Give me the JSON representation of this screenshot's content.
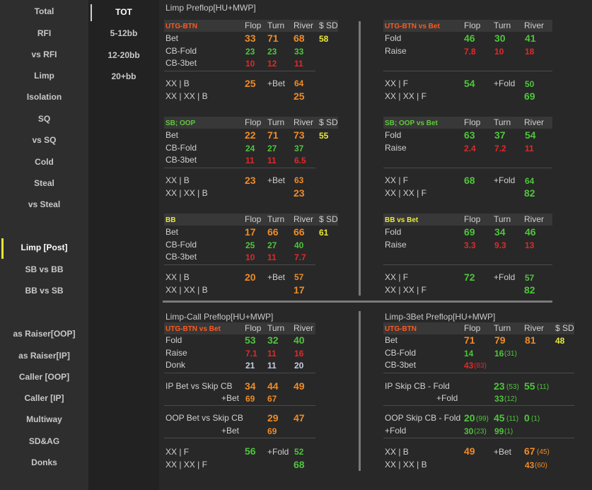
{
  "sidebar": {
    "items": [
      "Total",
      "RFI",
      "vs RFI",
      "Limp",
      "Isolation",
      "SQ",
      "vs SQ",
      "Cold",
      "Steal",
      "vs Steal",
      "Limp [Post]",
      "SB vs BB",
      "BB vs SB",
      "as Raiser[OOP]",
      "as Raiser[IP]",
      "Caller [OOP]",
      "Caller [IP]",
      "Multiway",
      "SD&AG",
      "Donks"
    ],
    "active": "Limp [Post]",
    "marker_color": "#e6e637"
  },
  "stacks": {
    "items": [
      "TOT",
      "5-12bb",
      "12-20bb",
      "20+bb"
    ],
    "active": "TOT"
  },
  "colors": {
    "orange": "#ef8b27",
    "green": "#4fc53c",
    "red": "#e22828",
    "yellow": "#e8e83c",
    "header_red": "#ff5a1e"
  },
  "col_headers": {
    "flop": "Flop",
    "turn": "Turn",
    "river": "River",
    "sd": "$ SD"
  },
  "labels": {
    "bet": "Bet",
    "cb_fold": "CB-Fold",
    "cb_3bet": "CB-3bet",
    "fold": "Fold",
    "raise": "Raise",
    "donk": "Donk",
    "xx_b": "XX | B",
    "xx_xx_b": "XX | XX | B",
    "xx_f": "XX | F",
    "xx_xx_f": "XX | XX | F",
    "plus_bet": "+Bet",
    "plus_fold": "+Fold"
  },
  "limp_preflop": {
    "title": "Limp Preflop[HU+MWP]",
    "utg": {
      "title": "UTG-BTN",
      "bet": {
        "flop": "33",
        "turn": "71",
        "river": "68",
        "sd": "58"
      },
      "cb_fold": {
        "flop": "23",
        "turn": "23",
        "river": "33"
      },
      "cb_3bet": {
        "flop": "10",
        "turn": "12",
        "river": "11"
      },
      "xx_b": "25",
      "plus_bet": "64",
      "xx_xx_b": "25"
    },
    "sb": {
      "title": "SB; OOP",
      "bet": {
        "flop": "22",
        "turn": "71",
        "river": "73",
        "sd": "55"
      },
      "cb_fold": {
        "flop": "24",
        "turn": "27",
        "river": "37"
      },
      "cb_3bet": {
        "flop": "11",
        "turn": "11",
        "river": "6.5"
      },
      "xx_b": "23",
      "plus_bet": "63",
      "xx_xx_b": "23"
    },
    "bb": {
      "title": "BB",
      "bet": {
        "flop": "17",
        "turn": "66",
        "river": "66",
        "sd": "61"
      },
      "cb_fold": {
        "flop": "25",
        "turn": "27",
        "river": "40"
      },
      "cb_3bet": {
        "flop": "10",
        "turn": "11",
        "river": "7.7"
      },
      "xx_b": "20",
      "plus_bet": "57",
      "xx_xx_b": "17"
    },
    "utg_vs": {
      "title": "UTG-BTN vs Bet",
      "fold": {
        "flop": "46",
        "turn": "30",
        "river": "41"
      },
      "raise": {
        "flop": "7.8",
        "turn": "10",
        "river": "18"
      },
      "xx_f": "54",
      "plus_fold": "50",
      "xx_xx_f": "69"
    },
    "sb_vs": {
      "title": "SB; OOP vs Bet",
      "fold": {
        "flop": "63",
        "turn": "37",
        "river": "54"
      },
      "raise": {
        "flop": "2.4",
        "turn": "7.2",
        "river": "11"
      },
      "xx_f": "68",
      "plus_fold": "64",
      "xx_xx_f": "82"
    },
    "bb_vs": {
      "title": "BB vs Bet",
      "fold": {
        "flop": "69",
        "turn": "34",
        "river": "46"
      },
      "raise": {
        "flop": "3.3",
        "turn": "9.3",
        "river": "13"
      },
      "xx_f": "72",
      "plus_fold": "57",
      "xx_xx_f": "82"
    }
  },
  "limp_call": {
    "title": "Limp-Call Preflop[HU+MWP]",
    "group_title": "UTG-BTN vs Bet",
    "fold": {
      "flop": "53",
      "turn": "32",
      "river": "40"
    },
    "raise": {
      "flop": "7.1",
      "turn": "11",
      "river": "16"
    },
    "donk": {
      "flop": "21",
      "turn": "11",
      "river": "20"
    },
    "ip_label": "IP Bet vs Skip CB",
    "ip": {
      "flop": "34",
      "turn": "44",
      "river": "49"
    },
    "ip_bet": {
      "flop": "69",
      "turn": "67"
    },
    "oop_label": "OOP Bet vs Skip CB",
    "oop": {
      "turn": "29",
      "river": "47"
    },
    "oop_bet": {
      "turn": "69"
    },
    "xx_f": "56",
    "plus_fold": "52",
    "xx_xx_f": "68"
  },
  "limp_3bet": {
    "title": "Limp-3Bet Preflop[HU+MWP]",
    "group_title": "UTG-BTN",
    "bet": {
      "flop": "71",
      "turn": "79",
      "river": "81",
      "sd": "48"
    },
    "cb_fold": {
      "flop": "14",
      "turn": "16",
      "turn_n": "(31)"
    },
    "cb_3bet": {
      "flop": "43",
      "flop_n": "(83)"
    },
    "ip_label": "IP Skip CB - Fold",
    "ip": {
      "turn": "23",
      "turn_n": "(53)",
      "river": "55",
      "river_n": "(11)"
    },
    "ip_fold": {
      "turn": "33",
      "turn_n": "(12)"
    },
    "oop_label": "OOP Skip CB - Fold",
    "plus_fold_lbl": "+Fold",
    "oop": {
      "flop": "20",
      "flop_n": "(99)",
      "turn": "45",
      "turn_n": "(11)",
      "river": "0",
      "river_n": "(1)"
    },
    "oop_fold": {
      "flop": "30",
      "flop_n": "(23)",
      "turn": "99",
      "turn_n": "(1)"
    },
    "xx_b": "49",
    "plus_bet": "67",
    "plus_bet_n": "(45)",
    "xx_xx_b": "43",
    "xx_xx_b_n": "(60)"
  }
}
